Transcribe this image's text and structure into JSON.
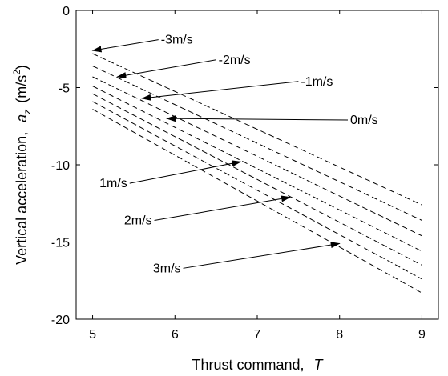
{
  "chart_data": {
    "type": "line",
    "title": "",
    "xlabel": {
      "text": "Thrust command,",
      "symbol": "T"
    },
    "ylabel": {
      "text": "Vertical acceleration,",
      "symbol": "a",
      "subscript": "z",
      "unit_open": "(m/s",
      "unit_sup": "2",
      "unit_close": ")"
    },
    "xlim": [
      4.8,
      9.2
    ],
    "ylim": [
      -20,
      0
    ],
    "xticks": [
      5,
      6,
      7,
      8,
      9
    ],
    "yticks": [
      0,
      -5,
      -10,
      -15,
      -20
    ],
    "grid": false,
    "line_style": "dashed",
    "line_color": "#000000",
    "series": [
      {
        "x": [
          5,
          9
        ],
        "y": [
          -2.8,
          -12.6
        ]
      },
      {
        "x": [
          5,
          9
        ],
        "y": [
          -3.6,
          -13.6
        ]
      },
      {
        "x": [
          5,
          9
        ],
        "y": [
          -4.3,
          -14.6
        ]
      },
      {
        "x": [
          5,
          9
        ],
        "y": [
          -4.9,
          -15.6
        ]
      },
      {
        "x": [
          5,
          9
        ],
        "y": [
          -5.4,
          -16.5
        ]
      },
      {
        "x": [
          5,
          9
        ],
        "y": [
          -5.9,
          -17.4
        ]
      },
      {
        "x": [
          5,
          9
        ],
        "y": [
          -6.4,
          -18.3
        ]
      }
    ],
    "annotations": [
      {
        "label": "-3m/s",
        "text_x": 5.8,
        "text_y": -1.9,
        "arrow_x": 5.0,
        "arrow_y": -2.6
      },
      {
        "label": "-2m/s",
        "text_x": 6.5,
        "text_y": -3.2,
        "arrow_x": 5.3,
        "arrow_y": -4.3
      },
      {
        "label": "-1m/s",
        "text_x": 7.5,
        "text_y": -4.6,
        "arrow_x": 5.6,
        "arrow_y": -5.7
      },
      {
        "label": "0m/s",
        "text_x": 8.1,
        "text_y": -7.1,
        "arrow_x": 5.9,
        "arrow_y": -7.0
      },
      {
        "label": "1m/s",
        "text_x": 5.45,
        "text_y": -11.2,
        "arrow_x": 6.8,
        "arrow_y": -9.8
      },
      {
        "label": "2m/s",
        "text_x": 5.75,
        "text_y": -13.6,
        "arrow_x": 7.4,
        "arrow_y": -12.1
      },
      {
        "label": "3m/s",
        "text_x": 6.1,
        "text_y": -16.7,
        "arrow_x": 8.0,
        "arrow_y": -15.1
      }
    ]
  }
}
